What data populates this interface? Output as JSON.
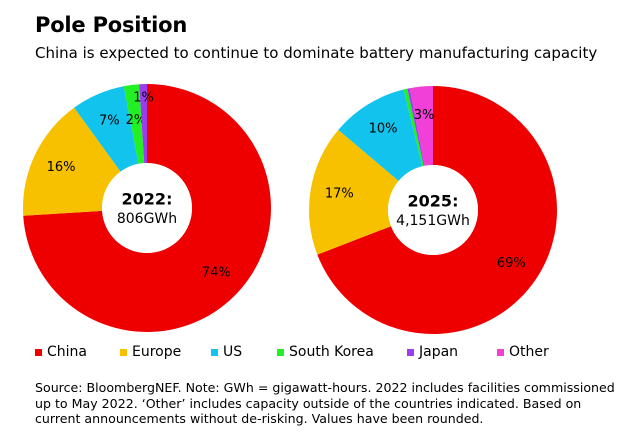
{
  "title": "Pole Position",
  "subtitle": "China is expected to continue to dominate battery manufacturing capacity",
  "colors": {
    "China": "#ee0000",
    "Europe": "#f7c100",
    "US": "#12c3ee",
    "South Korea": "#22f022",
    "Japan": "#9b3cf0",
    "Other": "#f040d8"
  },
  "legend": [
    "China",
    "Europe",
    "US",
    "South Korea",
    "Japan",
    "Other"
  ],
  "chart_data": [
    {
      "type": "pie",
      "center_label": {
        "year": "2022:",
        "value": "806GWh"
      },
      "categories": [
        "China",
        "Europe",
        "US",
        "South Korea",
        "Japan"
      ],
      "values": [
        74,
        16,
        7,
        2,
        1
      ],
      "data_labels": [
        "74%",
        "16%",
        "7%",
        "2%",
        "1%"
      ]
    },
    {
      "type": "pie",
      "center_label": {
        "year": "2025:",
        "value": "4,151GWh"
      },
      "categories": [
        "China",
        "Europe",
        "US",
        "South Korea",
        "Japan",
        "Other"
      ],
      "values": [
        69,
        17,
        10,
        0.5,
        0.3,
        3
      ],
      "data_labels": [
        "69%",
        "17%",
        "10%",
        "",
        "",
        "3%"
      ]
    }
  ],
  "source": "Source: BloombergNEF. Note: GWh = gigawatt-hours. 2022 includes facilities commissioned up to May 2022. ‘Other’ includes capacity outside of the countries indicated. Based on current announcements without de-risking. Values have been rounded."
}
